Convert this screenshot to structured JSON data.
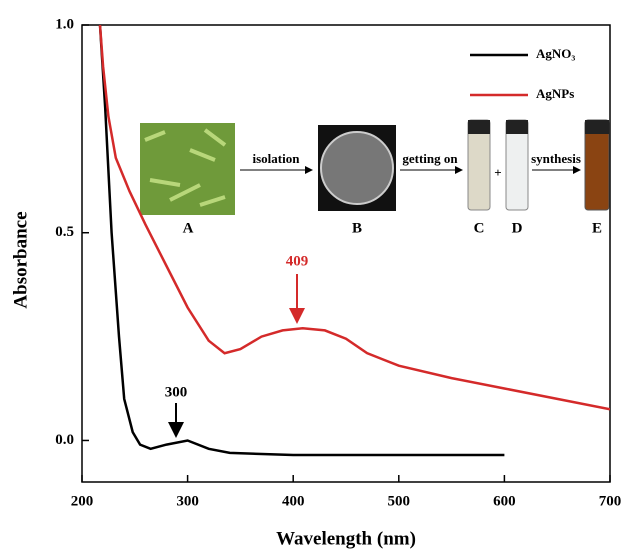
{
  "chart_data": {
    "type": "line",
    "xlabel": "Wavelength (nm)",
    "ylabel": "Absorbance",
    "xlim": [
      200,
      700
    ],
    "xticks": [
      200,
      300,
      400,
      500,
      600,
      700
    ],
    "ylim": [
      -0.1,
      1.0
    ],
    "yticks": [
      {
        "value": 0.0,
        "label": "0.0"
      },
      {
        "value": 0.5,
        "label": "0.5"
      },
      {
        "value": 1.0,
        "label": "1.0"
      }
    ],
    "legend": "upper right",
    "series": [
      {
        "name": "AgNO₃",
        "color": "#000000",
        "x": [
          217,
          222,
          228,
          235,
          240,
          248,
          255,
          265,
          280,
          300,
          320,
          340,
          400,
          500,
          600
        ],
        "values": [
          1.0,
          0.8,
          0.5,
          0.25,
          0.1,
          0.02,
          -0.01,
          -0.02,
          -0.01,
          0.0,
          -0.02,
          -0.03,
          -0.035,
          -0.035,
          -0.035
        ]
      },
      {
        "name": "AgNPs",
        "color": "#d42a2a",
        "x": [
          217,
          220,
          225,
          232,
          245,
          260,
          280,
          300,
          320,
          335,
          350,
          370,
          390,
          409,
          430,
          450,
          470,
          500,
          550,
          600,
          650,
          700
        ],
        "values": [
          1.0,
          0.9,
          0.78,
          0.68,
          0.6,
          0.52,
          0.42,
          0.32,
          0.24,
          0.21,
          0.22,
          0.25,
          0.265,
          0.27,
          0.265,
          0.245,
          0.21,
          0.18,
          0.15,
          0.125,
          0.1,
          0.075
        ]
      }
    ],
    "annotations": [
      "300",
      "409"
    ],
    "inset": {
      "panels": [
        "A",
        "B",
        "C",
        "D",
        "E"
      ],
      "steps": [
        "isolation",
        "getting on",
        "synthesis"
      ],
      "plus": "+"
    }
  }
}
